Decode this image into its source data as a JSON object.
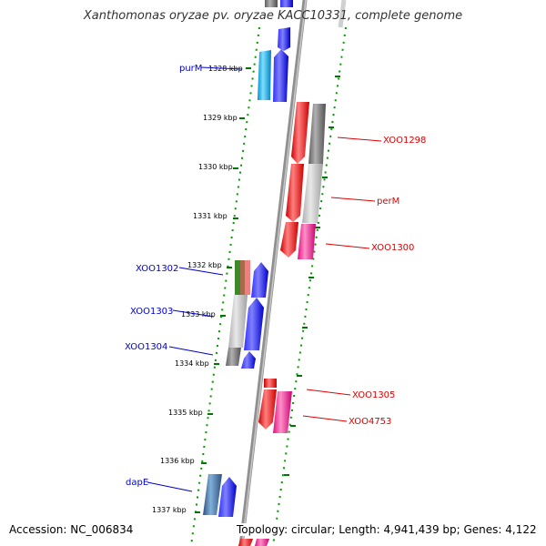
{
  "title": "Xanthomonas oryzae pv. oryzae KACC10331, complete genome",
  "accession_text": "Accession: NC_006834",
  "summary_text": "Topology: circular; Length: 4,941,439 bp; Genes: 4,122",
  "kbp_labels": [
    "1328 kbp",
    "1329 kbp",
    "1330 kbp",
    "1331 kbp",
    "1332 kbp",
    "1333 kbp",
    "1334 kbp",
    "1335 kbp",
    "1336 kbp",
    "1337 kbp"
  ],
  "left_gene_labels": [
    "purM",
    "XOO1302",
    "XOO1303",
    "XOO1304",
    "dapE"
  ],
  "right_gene_labels": [
    "XOO1298",
    "perM",
    "XOO1300",
    "XOO1305",
    "XOO4753"
  ],
  "colors": {
    "forward": "#0000ff",
    "reverse": "#ff0000",
    "pink": "#ff1493",
    "grey": "#808080",
    "cyan": "#00bfff",
    "tick_green": "#007700"
  }
}
